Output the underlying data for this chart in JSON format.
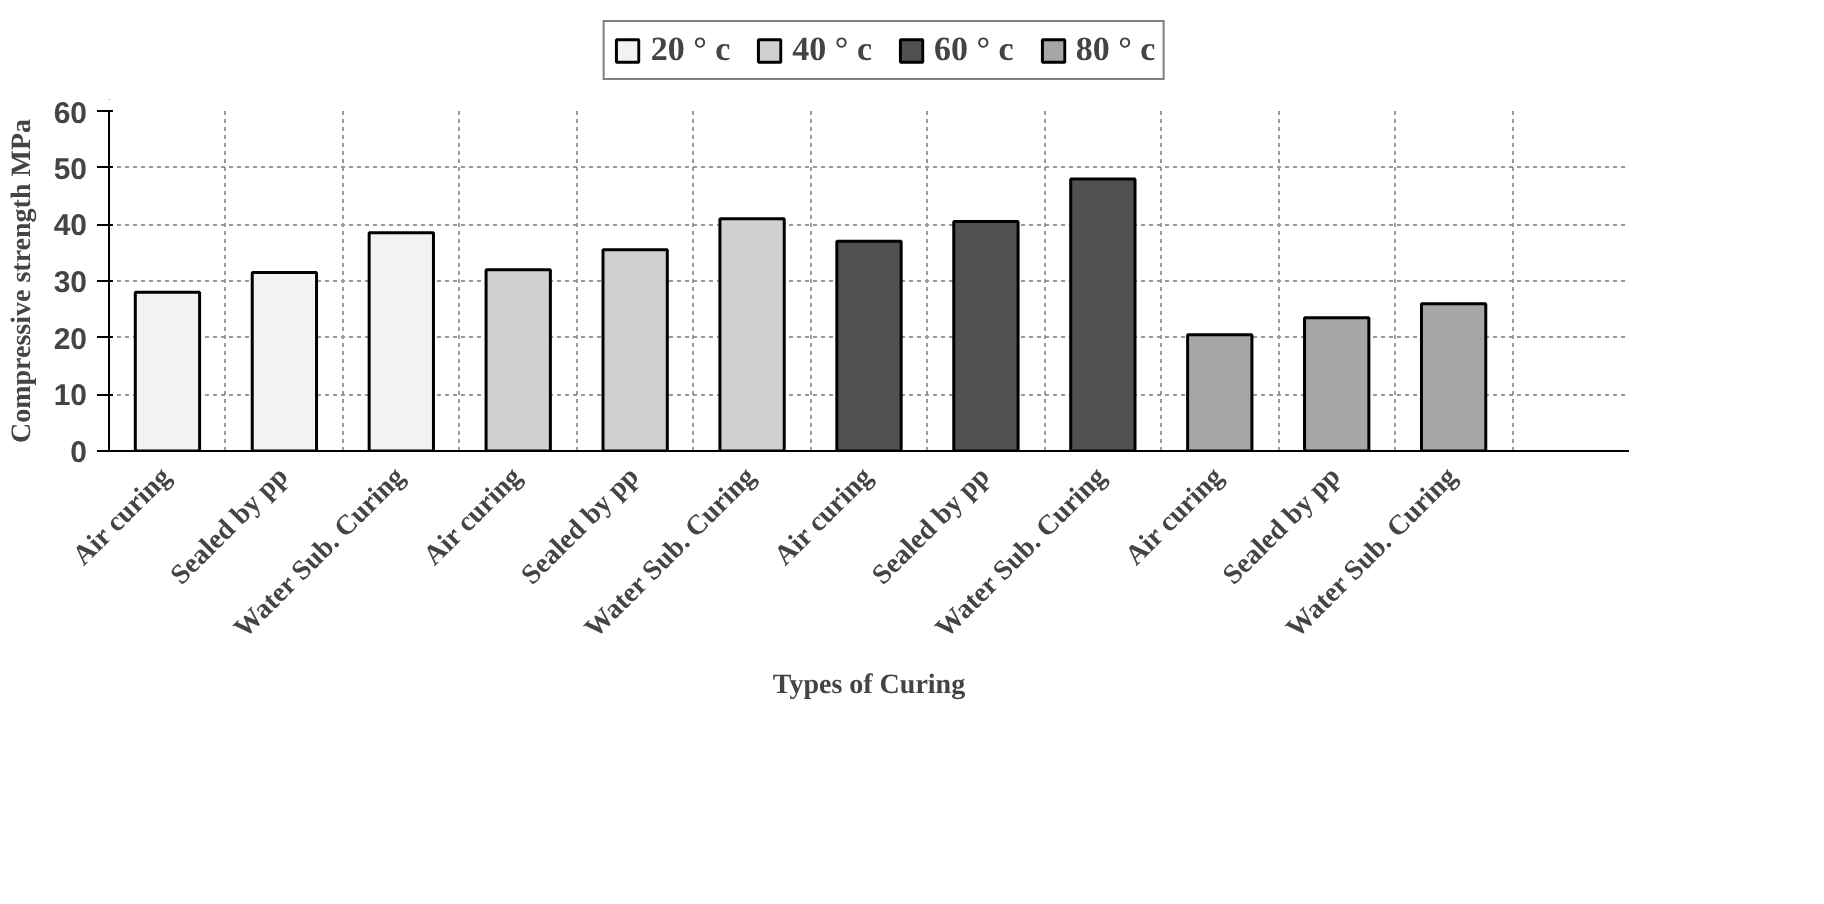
{
  "chart_data": {
    "type": "bar",
    "xlabel": "Types of Curing",
    "ylabel": "Compressive strength MPa",
    "categories": [
      "Air curing",
      "Sealed by pp",
      "Water Sub. Curing",
      "Air curing",
      "Sealed by pp",
      "Water Sub. Curing",
      "Air curing",
      "Sealed by pp",
      "Water Sub. Curing",
      "Air curing",
      "Sealed by pp",
      "Water Sub. Curing",
      null
    ],
    "series": [
      {
        "name": "20 ° c",
        "color": "#f2f2f2",
        "values": [
          28,
          31.5,
          38.5,
          null,
          null,
          null,
          null,
          null,
          null,
          null,
          null,
          null,
          null
        ]
      },
      {
        "name": "40 ° c",
        "color": "#d0d0d0",
        "values": [
          null,
          null,
          null,
          32,
          35.5,
          41,
          null,
          null,
          null,
          null,
          null,
          null,
          null
        ]
      },
      {
        "name": "60 ° c",
        "color": "#505050",
        "values": [
          null,
          null,
          null,
          null,
          null,
          null,
          37,
          40.5,
          48,
          null,
          null,
          null,
          null
        ]
      },
      {
        "name": "80 ° c",
        "color": "#a6a6a6",
        "values": [
          null,
          null,
          null,
          null,
          null,
          null,
          null,
          null,
          null,
          20.5,
          23.5,
          26,
          null
        ]
      }
    ],
    "ylim": [
      0,
      60
    ],
    "yticks": [
      0,
      10,
      20,
      30,
      40,
      50,
      60
    ],
    "grid": true,
    "legend": "top"
  }
}
